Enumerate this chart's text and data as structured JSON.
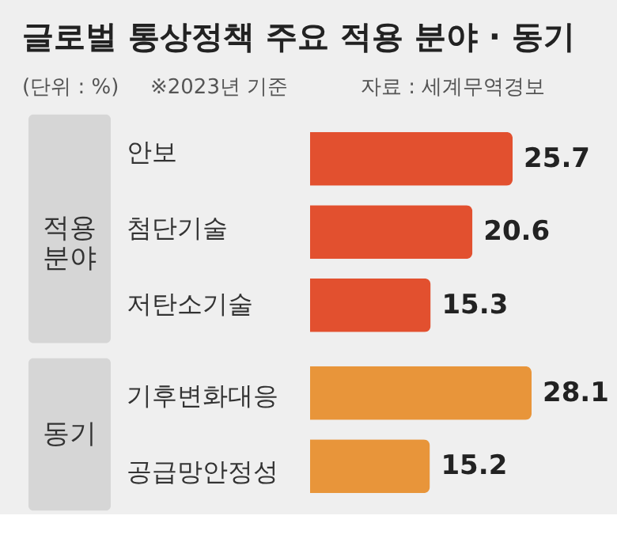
{
  "chart_data": {
    "type": "bar",
    "orientation": "horizontal",
    "title": "글로벌 통상정책 주요 적용 분야 · 동기",
    "annotations": [
      "(단위 : %)",
      "※2023년 기준",
      "자료 : 세계무역경보",
      "적용 분야",
      "동기"
    ],
    "categories": [
      "안보",
      "첨단기술",
      "저탄소기술",
      "기후변화대응",
      "공급망안정성"
    ],
    "values": [
      25.7,
      20.6,
      15.3,
      28.1,
      15.2
    ],
    "colors": [
      "#e2502f",
      "#e2502f",
      "#e2502f",
      "#e8953a",
      "#e8953a"
    ],
    "data_labels": true
  }
}
